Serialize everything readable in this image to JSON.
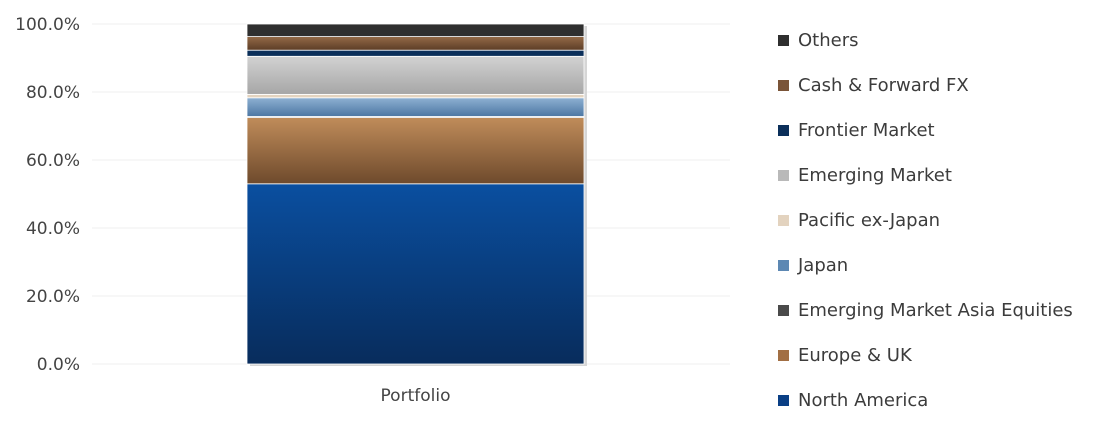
{
  "chart_data": {
    "type": "bar",
    "stacked": true,
    "categories": [
      "Portfolio"
    ],
    "ylim": [
      0,
      100
    ],
    "y_ticks": [
      "0.0%",
      "20.0%",
      "40.0%",
      "60.0%",
      "80.0%",
      "100.0%"
    ],
    "grid": true,
    "legend_position": "right",
    "series": [
      {
        "name": "North America",
        "values": [
          53.0
        ],
        "color": "#0a3f85"
      },
      {
        "name": "Europe & UK",
        "values": [
          19.5
        ],
        "color": "#a26f44"
      },
      {
        "name": "Emerging Market Asia Equities",
        "values": [
          0.3
        ],
        "color": "#4a4a4a"
      },
      {
        "name": "Japan",
        "values": [
          5.5
        ],
        "color": "#5d88b3"
      },
      {
        "name": "Pacific ex-Japan",
        "values": [
          1.0
        ],
        "color": "#e3d3bf"
      },
      {
        "name": "Emerging Market",
        "values": [
          11.2
        ],
        "color": "#b9b9b9"
      },
      {
        "name": "Frontier Market",
        "values": [
          1.8
        ],
        "color": "#0b2f5a"
      },
      {
        "name": "Cash & Forward FX",
        "values": [
          4.0
        ],
        "color": "#7a5438"
      },
      {
        "name": "Others",
        "values": [
          3.7
        ],
        "color": "#2f2f2f"
      }
    ]
  }
}
